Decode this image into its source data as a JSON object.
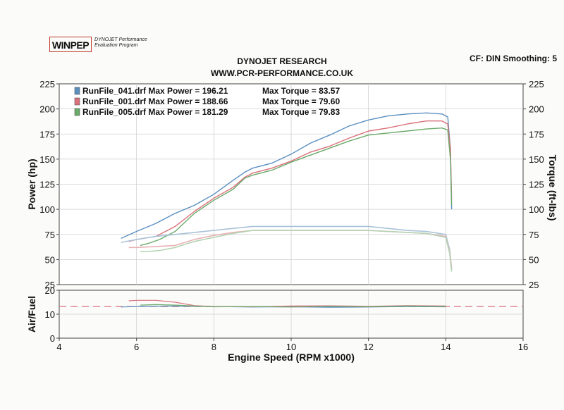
{
  "header": {
    "logo_text": "WINPEP",
    "logo_sub_line1": "DYNOJET Performance",
    "logo_sub_line2": "Evaluation Program",
    "title": "DYNOJET RESEARCH",
    "website": "WWW.PCR-PERFORMANCE.CO.UK",
    "cf_label": "CF: DIN  Smoothing: 5"
  },
  "chart_data": [
    {
      "type": "line",
      "title": "",
      "xlabel": "Engine Speed (RPM x1000)",
      "ylabel": "Power (hp)",
      "y2label": "Torque (ft-lbs)",
      "xlim": [
        4,
        16
      ],
      "ylim": [
        25,
        225
      ],
      "y2lim": [
        25,
        225
      ],
      "xticks": [
        4,
        6,
        8,
        10,
        12,
        14,
        16
      ],
      "yticks": [
        25,
        50,
        75,
        100,
        125,
        150,
        175,
        200,
        225
      ],
      "grid": true,
      "legend_position": "top-left",
      "legend": [
        {
          "label": "RunFile_041.drf Max Power = 196.21",
          "torque_label": "Max Torque = 83.57",
          "color": "#5a8fc0"
        },
        {
          "label": "RunFile_001.drf Max Power = 188.66",
          "torque_label": "Max Torque = 79.60",
          "color": "#d9707a"
        },
        {
          "label": "RunFile_005.drf Max Power = 181.29",
          "torque_label": "Max Torque = 79.83",
          "color": "#6aaa6a"
        }
      ],
      "series": [
        {
          "color": "#5a8fc0",
          "kind": "power",
          "x": [
            5.6,
            6.0,
            6.5,
            7.0,
            7.5,
            8.0,
            8.5,
            8.8,
            9.0,
            9.5,
            10.0,
            10.5,
            11.0,
            11.5,
            12.0,
            12.5,
            13.0,
            13.5,
            13.9,
            14.05,
            14.12,
            14.15
          ],
          "y": [
            71,
            78,
            86,
            96,
            104,
            115,
            129,
            137,
            141,
            146,
            155,
            166,
            174,
            183,
            189,
            193,
            195,
            196,
            195,
            192,
            160,
            100
          ]
        },
        {
          "color": "#d9707a",
          "kind": "power",
          "x": [
            5.8,
            6.0,
            6.5,
            7.0,
            7.5,
            8.0,
            8.5,
            8.8,
            9.0,
            9.5,
            10.0,
            10.5,
            11.0,
            11.5,
            12.0,
            12.5,
            13.0,
            13.5,
            13.9,
            14.05,
            14.12,
            14.15
          ],
          "y": [
            68,
            70,
            73,
            83,
            98,
            111,
            122,
            132,
            136,
            141,
            148,
            157,
            163,
            171,
            178,
            181,
            185,
            188,
            188,
            185,
            160,
            110
          ]
        },
        {
          "color": "#6aaa6a",
          "kind": "power",
          "x": [
            6.1,
            6.3,
            6.6,
            7.0,
            7.5,
            8.0,
            8.5,
            8.8,
            9.0,
            9.5,
            10.0,
            10.5,
            11.0,
            11.5,
            12.0,
            12.5,
            13.0,
            13.5,
            13.9,
            14.05,
            14.12,
            14.15
          ],
          "y": [
            64,
            66,
            70,
            78,
            96,
            109,
            120,
            131,
            134,
            139,
            147,
            154,
            161,
            168,
            174,
            176,
            178,
            180,
            181,
            179,
            150,
            104
          ]
        },
        {
          "color": "#a9c2d8",
          "kind": "torque",
          "x": [
            5.6,
            6.0,
            6.5,
            7.0,
            7.5,
            8.0,
            8.5,
            9.0,
            9.5,
            10.0,
            11.0,
            12.0,
            13.0,
            13.5,
            14.0,
            14.1,
            14.15
          ],
          "y": [
            67,
            70,
            73,
            75,
            77,
            79,
            81,
            83,
            83,
            83,
            83,
            83,
            79,
            78,
            75,
            60,
            40
          ]
        },
        {
          "color": "#e8b0b4",
          "kind": "torque",
          "x": [
            5.8,
            6.0,
            6.5,
            7.0,
            7.5,
            8.0,
            8.5,
            9.0,
            9.5,
            10.0,
            11.0,
            12.0,
            13.0,
            13.5,
            14.0,
            14.1,
            14.15
          ],
          "y": [
            62,
            62,
            63,
            64,
            70,
            74,
            77,
            79,
            79,
            79,
            79,
            79,
            77,
            76,
            73,
            58,
            42
          ]
        },
        {
          "color": "#b4d4b4",
          "kind": "torque",
          "x": [
            6.1,
            6.3,
            6.6,
            7.0,
            7.5,
            8.0,
            8.5,
            9.0,
            9.5,
            10.0,
            11.0,
            12.0,
            13.0,
            13.5,
            14.0,
            14.1,
            14.15
          ],
          "y": [
            58,
            58,
            59,
            62,
            68,
            72,
            76,
            79,
            79,
            79,
            79,
            79,
            77,
            76,
            72,
            56,
            38
          ]
        }
      ]
    },
    {
      "type": "line",
      "title": "",
      "xlabel": "Engine Speed (RPM x1000)",
      "ylabel": "Air/Fuel",
      "xlim": [
        4,
        16
      ],
      "ylim": [
        0,
        20
      ],
      "xticks": [
        4,
        6,
        8,
        10,
        12,
        14,
        16
      ],
      "yticks": [
        0,
        10,
        20
      ],
      "reference_line": 13.2,
      "grid": true,
      "series": [
        {
          "color": "#5a8fc0",
          "x": [
            5.6,
            6.0,
            7.0,
            8.0,
            9.0,
            10.0,
            11.0,
            12.0,
            13.0,
            14.0
          ],
          "y": [
            13.0,
            13.2,
            13.4,
            13.2,
            13.0,
            13.1,
            12.9,
            13.0,
            13.2,
            13.1
          ]
        },
        {
          "color": "#d9707a",
          "x": [
            5.8,
            6.0,
            6.5,
            7.0,
            7.5,
            8.0,
            9.0,
            10.0,
            11.0,
            12.0,
            13.0,
            14.0
          ],
          "y": [
            15.6,
            15.8,
            15.8,
            15.0,
            13.6,
            13.2,
            13.1,
            13.4,
            13.5,
            13.3,
            13.6,
            13.4
          ]
        },
        {
          "color": "#6aaa6a",
          "x": [
            6.1,
            6.5,
            7.0,
            7.5,
            8.0,
            9.0,
            10.0,
            11.0,
            12.0,
            13.0,
            14.0
          ],
          "y": [
            13.8,
            14.0,
            13.8,
            13.4,
            13.1,
            13.2,
            13.0,
            13.3,
            13.1,
            13.4,
            13.2
          ]
        }
      ]
    }
  ]
}
